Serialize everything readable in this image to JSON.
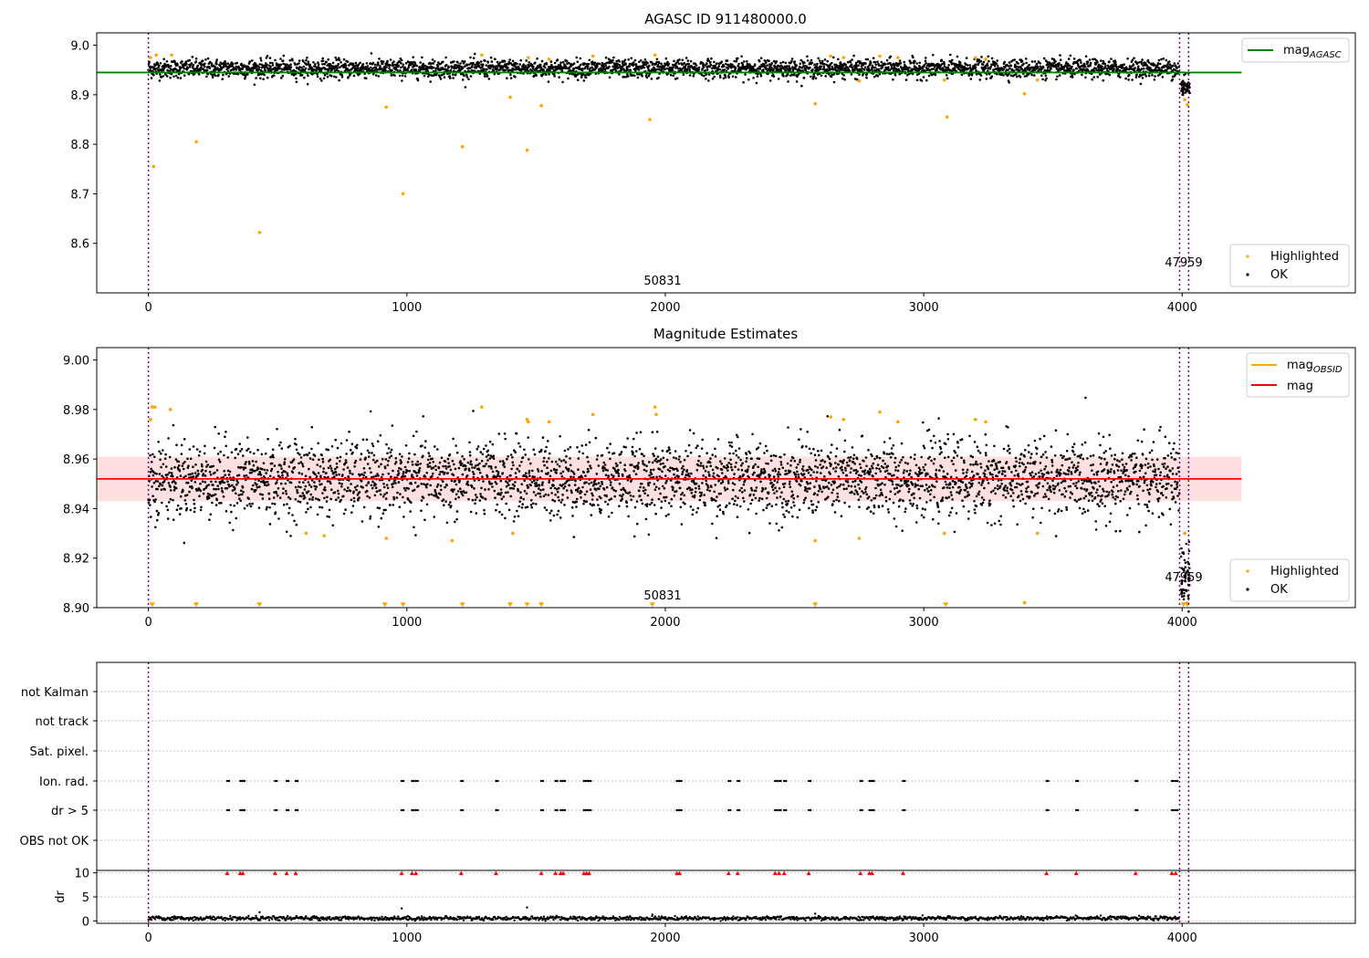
{
  "chart_data": [
    {
      "type": "scatter",
      "panel": "top",
      "title": "AGASC ID 911480000.0",
      "xlim": [
        -200,
        4670
      ],
      "ylim": [
        8.5,
        9.025
      ],
      "xticks": [
        0,
        1000,
        2000,
        3000,
        4000
      ],
      "yticks": [
        8.6,
        8.7,
        8.8,
        8.9,
        9.0
      ],
      "grid": false,
      "mag_agasc": 8.945,
      "ok_mean": 8.953,
      "ok_spread": 0.011,
      "ok_x_range": [
        0,
        3990
      ],
      "ok_group2": {
        "x_range": [
          3995,
          4030
        ],
        "mean": 8.915,
        "spread": 0.01
      },
      "vlines": [
        0,
        3990,
        4025
      ],
      "annotations": [
        {
          "text": "50831",
          "x": 1990,
          "y": 8.52
        },
        {
          "text": "47959",
          "x": 4005,
          "y": 8.56
        }
      ],
      "series": [
        {
          "name": "Highlighted",
          "color": "#ffa500",
          "x": [
            8,
            20,
            30,
            90,
            185,
            430,
            920,
            985,
            1215,
            1290,
            1400,
            1465,
            1470,
            1520,
            1550,
            1720,
            1940,
            1960,
            2580,
            2640,
            2690,
            2750,
            2830,
            2900,
            3080,
            3090,
            3200,
            3240,
            3390,
            3440,
            4010,
            4020
          ],
          "y": [
            8.975,
            8.755,
            8.98,
            8.98,
            8.805,
            8.622,
            8.875,
            8.7,
            8.795,
            8.98,
            8.895,
            8.788,
            8.975,
            8.878,
            8.972,
            8.978,
            8.85,
            8.98,
            8.882,
            8.978,
            8.975,
            8.928,
            8.978,
            8.975,
            8.93,
            8.855,
            8.975,
            8.972,
            8.902,
            8.93,
            8.89,
            8.88
          ]
        },
        {
          "name": "OK",
          "color": "#000000"
        },
        {
          "name": "mag_AGASC",
          "color": "#008000"
        }
      ],
      "legend": [
        {
          "label_main": "mag",
          "label_sub": "AGASC",
          "location": "upper-right"
        },
        {
          "label": "Highlighted",
          "location": "lower-right"
        },
        {
          "label": "OK",
          "location": "lower-right"
        }
      ]
    },
    {
      "type": "scatter",
      "panel": "middle",
      "title": "Magnitude Estimates",
      "xlim": [
        -200,
        4670
      ],
      "ylim": [
        8.9,
        9.005
      ],
      "xticks": [
        0,
        1000,
        2000,
        3000,
        4000
      ],
      "yticks": [
        8.9,
        8.92,
        8.94,
        8.96,
        8.98,
        9.0
      ],
      "grid": false,
      "mag": 8.952,
      "mag_band": [
        8.943,
        8.961
      ],
      "ok_mean": 8.952,
      "ok_spread": 0.009,
      "ok_x_range": [
        0,
        3990
      ],
      "ok_group2": {
        "x_range": [
          3995,
          4030
        ],
        "mean": 8.912,
        "spread": 0.006
      },
      "vlines": [
        0,
        3990,
        4025
      ],
      "annotations": [
        {
          "text": "50831",
          "x": 1990,
          "y": 8.904
        },
        {
          "text": "47959",
          "x": 4005,
          "y": 8.911
        }
      ],
      "series": [
        {
          "name": "Highlighted",
          "color": "#ffa500",
          "x": [
            8,
            15,
            25,
            85,
            610,
            680,
            920,
            1175,
            1290,
            1410,
            1465,
            1470,
            1550,
            1720,
            1960,
            1965,
            2580,
            2640,
            2690,
            2750,
            2830,
            2900,
            3080,
            3200,
            3240,
            3390,
            3440,
            4010
          ],
          "y": [
            8.976,
            8.981,
            8.981,
            8.98,
            8.93,
            8.929,
            8.928,
            8.927,
            8.981,
            8.93,
            8.976,
            8.975,
            8.975,
            8.978,
            8.981,
            8.978,
            8.927,
            8.977,
            8.976,
            8.928,
            8.979,
            8.975,
            8.93,
            8.976,
            8.975,
            8.902,
            8.93,
            8.93
          ]
        },
        {
          "name": "Highlighted (below range)",
          "color": "#ffa500",
          "x": [
            15,
            185,
            430,
            915,
            985,
            1215,
            1400,
            1465,
            1520,
            1950,
            2580,
            3085,
            4005,
            4020
          ],
          "y": [
            8.901,
            8.901,
            8.901,
            8.901,
            8.901,
            8.901,
            8.901,
            8.901,
            8.901,
            8.901,
            8.901,
            8.901,
            8.901,
            8.901
          ]
        },
        {
          "name": "OK",
          "color": "#000000"
        },
        {
          "name": "mag_OBSID",
          "color": "#ffa500"
        },
        {
          "name": "mag",
          "color": "#ff0000"
        }
      ],
      "legend": [
        {
          "label_main": "mag",
          "label_sub": "OBSID",
          "location": "upper-right"
        },
        {
          "label": "mag",
          "location": "upper-right"
        },
        {
          "label": "Highlighted",
          "location": "lower-right"
        },
        {
          "label": "OK",
          "location": "lower-right"
        }
      ]
    },
    {
      "type": "scatter",
      "panel": "flags",
      "xlim": [
        -200,
        4670
      ],
      "categories": [
        "not Kalman",
        "not track",
        "Sat. pixel.",
        "Ion. rad.",
        "dr > 5",
        "OBS not OK"
      ],
      "grid": true,
      "flag_x": [
        305,
        355,
        365,
        490,
        535,
        570,
        980,
        1020,
        1035,
        1210,
        1345,
        1520,
        1575,
        1595,
        1605,
        1685,
        1695,
        1705,
        2045,
        2055,
        2245,
        2280,
        2425,
        2440,
        2460,
        2555,
        2755,
        2790,
        2800,
        2920,
        3475,
        3590,
        3820,
        3960,
        3975
      ],
      "flagged_rows": [
        "Ion. rad.",
        "dr > 5"
      ],
      "vlines": [
        0,
        3990,
        4025
      ]
    },
    {
      "type": "scatter",
      "panel": "dr",
      "ylabel": "dr",
      "xlim": [
        -200,
        4670
      ],
      "ylim": [
        -0.5,
        10.5
      ],
      "xticks": [
        0,
        1000,
        2000,
        3000,
        4000
      ],
      "yticks": [
        0,
        5,
        10
      ],
      "grid": true,
      "dr_mean": 0.55,
      "clipped_marker_y": 9.9,
      "clipped_color": "#ff0000",
      "outliers": {
        "x": [
          430,
          980,
          1465,
          1950,
          2580
        ],
        "y": [
          1.8,
          2.6,
          2.8,
          1.3,
          1.5
        ]
      },
      "vlines": [
        0,
        3990,
        4025
      ]
    }
  ]
}
